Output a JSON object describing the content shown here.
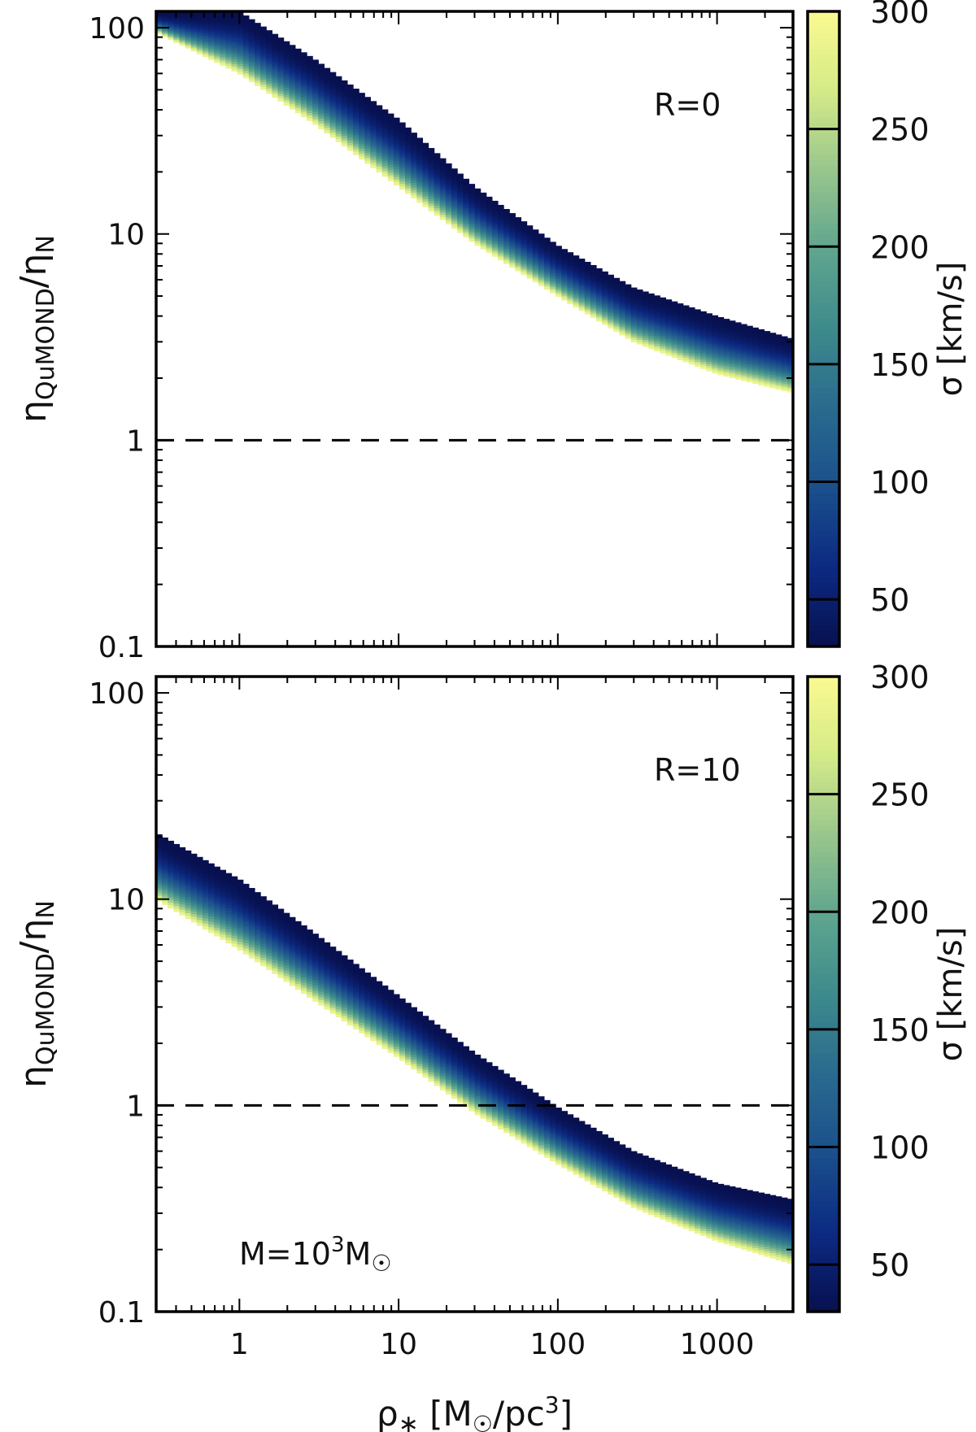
{
  "chart_data": [
    {
      "type": "heatmap",
      "panel": "top",
      "annotation": "R=0",
      "xscale": "log",
      "yscale": "log",
      "xlim": [
        0.3,
        3000
      ],
      "ylim": [
        0.1,
        120
      ],
      "xticks": [
        1,
        10,
        100,
        1000
      ],
      "xtick_labels": [
        "1",
        "10",
        "100",
        "1000"
      ],
      "xtick_labels_visible": false,
      "yticks": [
        0.1,
        1,
        10,
        100
      ],
      "ytick_labels": [
        "0.1",
        "1",
        "10",
        "100"
      ],
      "ylabel": "ηQuMOND/ηN",
      "reference_line": {
        "y": 1,
        "style": "dashed"
      },
      "band": {
        "x": [
          0.3,
          1,
          3,
          10,
          30,
          100,
          300,
          1000,
          3000
        ],
        "y_sigma_300": [
          95,
          60,
          34,
          17,
          9.0,
          5.0,
          3.0,
          2.1,
          1.7
        ],
        "y_sigma_30": [
          120,
          120,
          70,
          36,
          17,
          8.8,
          5.5,
          4.0,
          3.1
        ]
      },
      "colorbar": {
        "label": "σ [km/s]",
        "range": [
          30,
          300
        ],
        "ticks": [
          50,
          100,
          150,
          200,
          250,
          300
        ],
        "colors": [
          "#08104f",
          "#0c2a82",
          "#1a4f8c",
          "#2a6a8e",
          "#3d8a8c",
          "#5fa58e",
          "#98c58d",
          "#d4ea88",
          "#fafa90"
        ]
      }
    },
    {
      "type": "heatmap",
      "panel": "bottom",
      "annotation": "R=10",
      "mass_label": "M=10³M☉",
      "xscale": "log",
      "yscale": "log",
      "xlim": [
        0.3,
        3000
      ],
      "ylim": [
        0.1,
        120
      ],
      "xticks": [
        1,
        10,
        100,
        1000
      ],
      "xtick_labels": [
        "1",
        "10",
        "100",
        "1000"
      ],
      "xlabel": "ρ* [M☉/pc³]",
      "yticks": [
        0.1,
        1,
        10,
        100
      ],
      "ytick_labels": [
        "0.1",
        "1",
        "10",
        "100"
      ],
      "ylabel": "ηQuMOND/ηN",
      "reference_line": {
        "y": 1,
        "style": "dashed"
      },
      "band": {
        "x": [
          0.3,
          1,
          3,
          10,
          30,
          100,
          300,
          1000,
          3000
        ],
        "y_sigma_300": [
          10,
          5.7,
          3.2,
          1.7,
          0.92,
          0.52,
          0.32,
          0.22,
          0.17
        ],
        "y_sigma_30": [
          21,
          12.5,
          6.8,
          3.4,
          1.8,
          0.98,
          0.6,
          0.42,
          0.35
        ]
      },
      "colorbar": {
        "label": "σ [km/s]",
        "range": [
          30,
          300
        ],
        "ticks": [
          50,
          100,
          150,
          200,
          250,
          300
        ],
        "colors": [
          "#08104f",
          "#0c2a82",
          "#1a4f8c",
          "#2a6a8e",
          "#3d8a8c",
          "#5fa58e",
          "#98c58d",
          "#d4ea88",
          "#fafa90"
        ]
      }
    }
  ]
}
